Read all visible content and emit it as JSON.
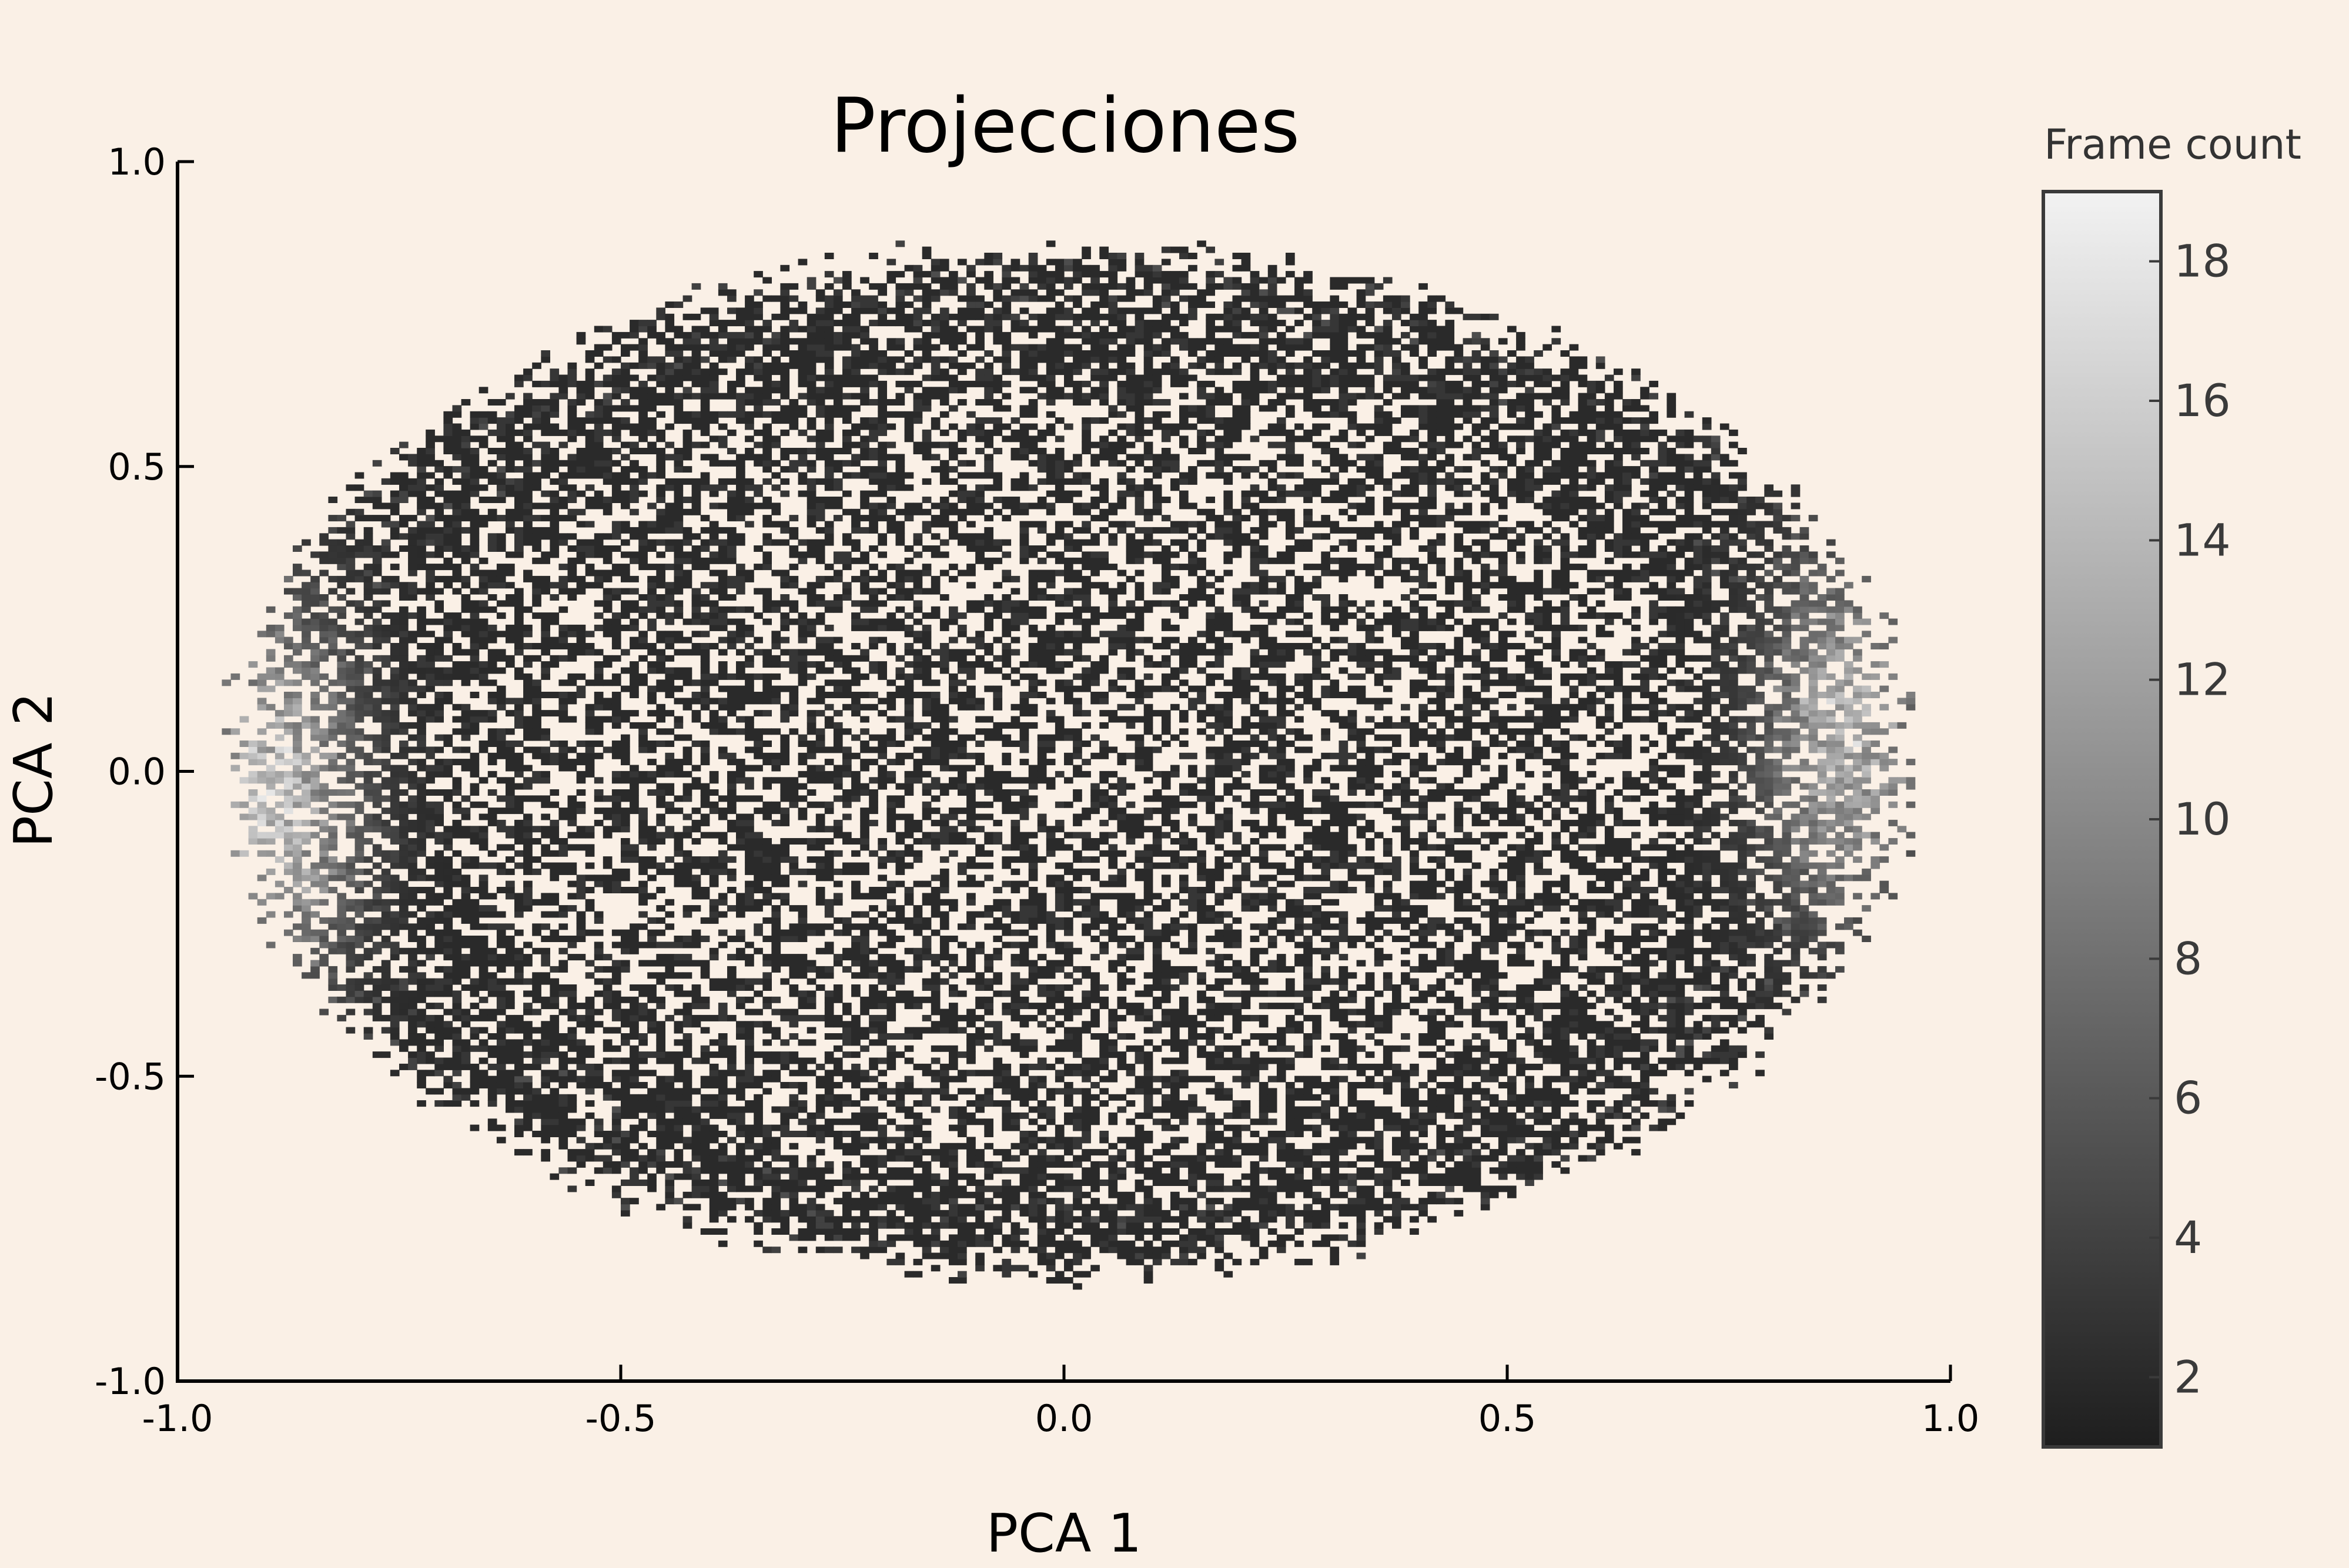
{
  "chart_data": {
    "type": "heatmap",
    "title": "Projecciones",
    "xlabel": "PCA 1",
    "ylabel": "PCA 2",
    "xlim": [
      -1.0,
      1.0
    ],
    "ylim": [
      -1.0,
      1.0
    ],
    "x_ticks": [
      {
        "value": -1.0,
        "label": "-1.0"
      },
      {
        "value": -0.5,
        "label": "-0.5"
      },
      {
        "value": 0.0,
        "label": "0.0"
      },
      {
        "value": 0.5,
        "label": "0.5"
      },
      {
        "value": 1.0,
        "label": "1.0"
      }
    ],
    "y_ticks": [
      {
        "value": -1.0,
        "label": "-1.0"
      },
      {
        "value": -0.5,
        "label": "-0.5"
      },
      {
        "value": 0.0,
        "label": "0.0"
      },
      {
        "value": 0.5,
        "label": "0.5"
      },
      {
        "value": 1.0,
        "label": "1.0"
      }
    ],
    "grid": false,
    "colormap": "grayscale",
    "colormap_low_color": "#1e1e1e",
    "colormap_high_color": "#f2f2f2",
    "background_color": "#faf0e6",
    "colorbar": {
      "label": "Frame count",
      "range": [
        1,
        19
      ],
      "ticks": [
        {
          "value": 2,
          "label": "2"
        },
        {
          "value": 4,
          "label": "4"
        },
        {
          "value": 6,
          "label": "6"
        },
        {
          "value": 8,
          "label": "8"
        },
        {
          "value": 10,
          "label": "10"
        },
        {
          "value": 12,
          "label": "12"
        },
        {
          "value": 14,
          "label": "14"
        },
        {
          "value": 16,
          "label": "16"
        },
        {
          "value": 18,
          "label": "18"
        }
      ]
    },
    "density": {
      "support_ellipse": {
        "center_x": 0.0,
        "center_y": 0.01,
        "semi_axis_x": 0.96,
        "semi_axis_y": 0.86
      },
      "bin_size": 0.01,
      "hotspots": [
        {
          "x": -0.9,
          "y": -0.05,
          "peak_count": 18
        },
        {
          "x": 0.88,
          "y": 0.05,
          "peak_count": 16
        }
      ],
      "typical_count_interior": 2
    }
  }
}
